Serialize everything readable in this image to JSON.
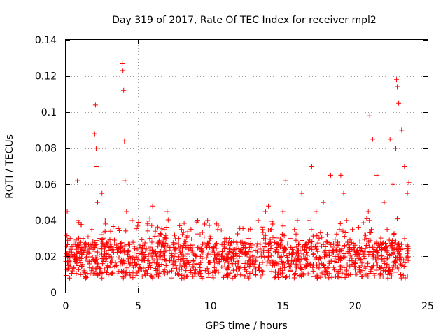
{
  "chart_data": {
    "type": "scatter",
    "title": "Day 319 of 2017, Rate Of TEC Index for receiver mpl2",
    "xlabel": "GPS time / hours",
    "ylabel": "ROTI / TECUs",
    "xlim": [
      0,
      25
    ],
    "ylim": [
      0,
      0.14
    ],
    "xticks": [
      "0",
      "5",
      "10",
      "15",
      "20",
      "25"
    ],
    "xtick_values": [
      0,
      5,
      10,
      15,
      20,
      25
    ],
    "yticks": [
      "0",
      "0.02",
      "0.04",
      "0.06",
      "0.08",
      "0.1",
      "0.12",
      "0.14"
    ],
    "ytick_values": [
      0,
      0.02,
      0.04,
      0.06,
      0.08,
      0.1,
      0.12,
      0.14
    ],
    "grid": true,
    "marker": "+",
    "color": "#ff0000",
    "series": [
      {
        "name": "ROTI",
        "x": [
          0.0,
          0.1,
          0.2,
          0.3,
          0.45,
          0.6,
          0.8,
          0.85,
          1.0,
          1.2,
          1.4,
          1.6,
          1.8,
          2.0,
          2.05,
          2.1,
          2.15,
          2.2,
          2.3,
          2.5,
          2.7,
          2.9,
          3.0,
          3.2,
          3.5,
          3.8,
          3.9,
          3.95,
          4.0,
          4.05,
          4.1,
          4.2,
          4.4,
          4.6,
          4.8,
          5.0,
          5.2,
          5.5,
          5.8,
          6.0,
          6.2,
          6.5,
          6.8,
          7.0,
          7.2,
          7.5,
          7.8,
          8.0,
          8.3,
          8.6,
          9.0,
          9.3,
          9.6,
          9.8,
          10.0,
          10.2,
          10.5,
          10.8,
          11.0,
          11.3,
          11.6,
          12.0,
          12.3,
          12.6,
          13.0,
          13.3,
          13.6,
          13.8,
          14.0,
          14.3,
          14.6,
          14.9,
          15.0,
          15.2,
          15.5,
          15.8,
          16.0,
          16.3,
          16.6,
          16.8,
          17.0,
          17.3,
          17.5,
          17.8,
          18.0,
          18.3,
          18.6,
          18.9,
          19.0,
          19.2,
          19.4,
          19.6,
          19.8,
          20.0,
          20.3,
          20.6,
          20.8,
          20.9,
          21.0,
          21.2,
          21.5,
          21.8,
          22.0,
          22.2,
          22.4,
          22.6,
          22.8,
          22.85,
          22.9,
          23.0,
          23.2,
          23.4,
          23.6,
          23.7
        ],
        "y": [
          0.02,
          0.045,
          0.015,
          0.03,
          0.012,
          0.018,
          0.062,
          0.04,
          0.025,
          0.03,
          0.018,
          0.022,
          0.035,
          0.088,
          0.104,
          0.08,
          0.07,
          0.05,
          0.03,
          0.055,
          0.02,
          0.015,
          0.025,
          0.018,
          0.015,
          0.025,
          0.127,
          0.123,
          0.112,
          0.084,
          0.062,
          0.045,
          0.02,
          0.018,
          0.015,
          0.012,
          0.025,
          0.02,
          0.03,
          0.048,
          0.022,
          0.018,
          0.035,
          0.045,
          0.025,
          0.02,
          0.03,
          0.035,
          0.028,
          0.025,
          0.02,
          0.02,
          0.038,
          0.04,
          0.03,
          0.025,
          0.035,
          0.02,
          0.03,
          0.03,
          0.028,
          0.02,
          0.025,
          0.03,
          0.018,
          0.04,
          0.035,
          0.045,
          0.048,
          0.038,
          0.025,
          0.02,
          0.045,
          0.062,
          0.03,
          0.035,
          0.04,
          0.055,
          0.025,
          0.04,
          0.07,
          0.045,
          0.03,
          0.05,
          0.028,
          0.065,
          0.02,
          0.035,
          0.065,
          0.055,
          0.04,
          0.025,
          0.035,
          0.018,
          0.025,
          0.02,
          0.03,
          0.045,
          0.098,
          0.085,
          0.065,
          0.025,
          0.05,
          0.035,
          0.085,
          0.06,
          0.08,
          0.118,
          0.114,
          0.105,
          0.09,
          0.07,
          0.055,
          0.061
        ]
      }
    ]
  }
}
